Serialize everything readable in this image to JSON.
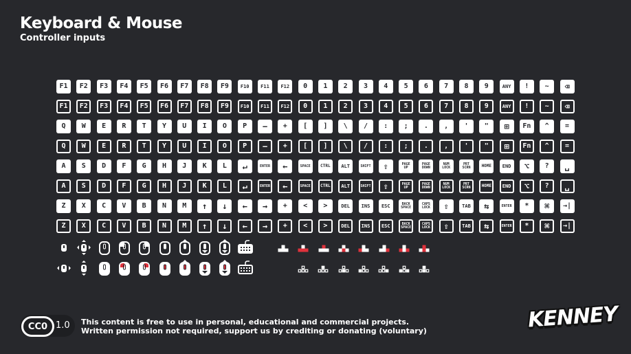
{
  "header": {
    "title": "Keyboard & Mouse",
    "subtitle": "Controller inputs"
  },
  "colors": {
    "background": "#27282c",
    "key": "#ffffff",
    "accent_red": "#e0323c"
  },
  "key_rows": [
    [
      "F1",
      "F2",
      "F3",
      "F4",
      "F5",
      "F6",
      "F7",
      "F8",
      "F9",
      "F10",
      "F11",
      "F12",
      "0",
      "1",
      "2",
      "3",
      "4",
      "5",
      "6",
      "7",
      "8",
      "9",
      "ANY",
      "!",
      "~",
      "⌫"
    ],
    [
      "Q",
      "W",
      "E",
      "R",
      "T",
      "Y",
      "U",
      "I",
      "O",
      "P",
      "−",
      "+",
      "[",
      "]",
      "\\",
      "/",
      ":",
      ";",
      ".",
      ",",
      "'",
      "\"",
      "⊞",
      "Fn",
      "^",
      "="
    ],
    [
      "A",
      "S",
      "D",
      "F",
      "G",
      "H",
      "J",
      "K",
      "L",
      "↵",
      "ENTER",
      "←",
      "SPACE",
      "CTRL",
      "ALT",
      "SHIFT",
      "⇧",
      "PAGE\nUP",
      "PAGE\nDOWN",
      "NUM\nLOCK",
      "PRT\nSCRN",
      "HOME",
      "END",
      "⌥",
      "?",
      "␣"
    ],
    [
      "Z",
      "X",
      "C",
      "V",
      "B",
      "N",
      "M",
      "↑",
      "↓",
      "←",
      "→",
      "+",
      "<",
      ">",
      "DEL",
      "INS",
      "ESC",
      "BACK\nSPACE",
      "CAPS\nLOCK",
      "⇧",
      "TAB",
      "⇆",
      "ENTER",
      "*",
      "⌘",
      "→|"
    ]
  ],
  "mouse_icons": [
    [
      "mouse-small",
      "mouse-move-all",
      "mouse-outline",
      "mouse-left",
      "mouse-right",
      "mouse-scroll",
      "mouse-scroll-up",
      "mouse-scroll-down",
      "mouse-scroll-vertical",
      "keyboard"
    ],
    [
      "mouse-horizontal",
      "mouse-vertical",
      "mouse-filled",
      "mouse-left-red",
      "mouse-right-red",
      "mouse-scroll-red",
      "mouse-scroll-up-red",
      "mouse-scroll-down-red",
      "mouse-scroll-vertical-red",
      "keyboard-outline"
    ]
  ],
  "arrow_clusters": {
    "filled_red": [
      [],
      [
        "left",
        "mid",
        "right"
      ],
      [
        "top"
      ],
      [
        "mid"
      ],
      [
        "left"
      ],
      [
        "right"
      ],
      [
        "left",
        "right"
      ],
      [
        "top",
        "mid"
      ]
    ],
    "outline_filled": [
      [],
      [
        "top"
      ],
      [
        "mid"
      ],
      [
        "left"
      ],
      [
        "right"
      ],
      [
        "left",
        "right"
      ],
      [
        "top",
        "mid"
      ]
    ]
  },
  "footer": {
    "license_badge": "CC0",
    "license_version": "1.0",
    "notice_line1": "This content is free to use in personal, educational and commercial projects.",
    "notice_line2": "Written permission not required, support us by crediting or donating (voluntary)",
    "logo": "KENNEY"
  }
}
